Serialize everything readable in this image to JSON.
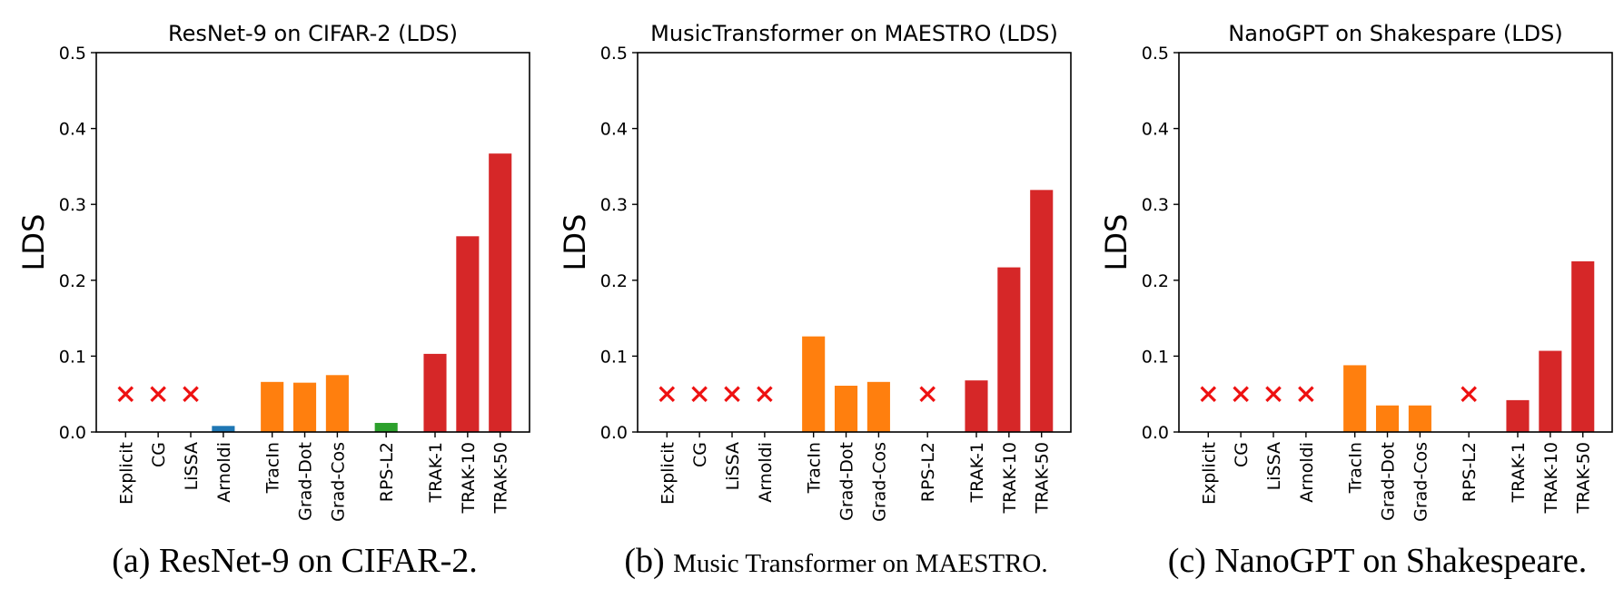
{
  "colors": {
    "blue": "#1f77b4",
    "orange": "#ff7f0e",
    "green": "#2ca02c",
    "red": "#d62728",
    "marker": "#ee1111"
  },
  "chart_data": [
    {
      "type": "bar",
      "title": "ResNet-9 on CIFAR-2 (LDS)",
      "ylabel": "LDS",
      "xlabel": "",
      "ylim": [
        0,
        0.5
      ],
      "yticks": [
        "0.0",
        "0.1",
        "0.2",
        "0.3",
        "0.4",
        "0.5"
      ],
      "categories": [
        "Explicit",
        "CG",
        "LiSSA",
        "Arnoldi",
        "TracIn",
        "Grad-Dot",
        "Grad-Cos",
        "RPS-L2",
        "TRAK-1",
        "TRAK-10",
        "TRAK-50"
      ],
      "values": [
        null,
        null,
        null,
        0.008,
        0.066,
        0.065,
        0.075,
        0.012,
        0.103,
        0.258,
        0.367
      ],
      "bar_colors": [
        "",
        "",
        "",
        "blue",
        "orange",
        "orange",
        "orange",
        "green",
        "red",
        "red",
        "red"
      ],
      "not_applicable_marker_value": 0.05,
      "caption_label": "(a) ",
      "caption_text": "ResNet-9 on CIFAR-2."
    },
    {
      "type": "bar",
      "title": "MusicTransformer on MAESTRO (LDS)",
      "ylabel": "LDS",
      "xlabel": "",
      "ylim": [
        0,
        0.5
      ],
      "yticks": [
        "0.0",
        "0.1",
        "0.2",
        "0.3",
        "0.4",
        "0.5"
      ],
      "categories": [
        "Explicit",
        "CG",
        "LiSSA",
        "Arnoldi",
        "TracIn",
        "Grad-Dot",
        "Grad-Cos",
        "RPS-L2",
        "TRAK-1",
        "TRAK-10",
        "TRAK-50"
      ],
      "values": [
        null,
        null,
        null,
        null,
        0.126,
        0.061,
        0.066,
        null,
        0.068,
        0.217,
        0.319
      ],
      "bar_colors": [
        "",
        "",
        "",
        "",
        "orange",
        "orange",
        "orange",
        "",
        "red",
        "red",
        "red"
      ],
      "not_applicable_marker_value": 0.05,
      "caption_label": "(b) ",
      "caption_text": "Music Transformer on MAESTRO."
    },
    {
      "type": "bar",
      "title": "NanoGPT on Shakespare (LDS)",
      "ylabel": "LDS",
      "xlabel": "",
      "ylim": [
        0,
        0.5
      ],
      "yticks": [
        "0.0",
        "0.1",
        "0.2",
        "0.3",
        "0.4",
        "0.5"
      ],
      "categories": [
        "Explicit",
        "CG",
        "LiSSA",
        "Arnoldi",
        "TracIn",
        "Grad-Dot",
        "Grad-Cos",
        "RPS-L2",
        "TRAK-1",
        "TRAK-10",
        "TRAK-50"
      ],
      "values": [
        null,
        null,
        null,
        null,
        0.088,
        0.035,
        0.035,
        null,
        0.042,
        0.107,
        0.225
      ],
      "bar_colors": [
        "",
        "",
        "",
        "",
        "orange",
        "orange",
        "orange",
        "",
        "red",
        "red",
        "red"
      ],
      "not_applicable_marker_value": 0.05,
      "caption_label": "(c) ",
      "caption_text": "NanoGPT on Shakespeare."
    }
  ]
}
